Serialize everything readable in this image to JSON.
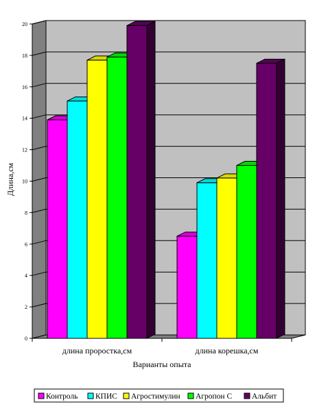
{
  "chart_data": {
    "type": "bar",
    "title": "",
    "xlabel": "Варианты опыта",
    "ylabel": "Длина,см",
    "ylim": [
      0,
      20
    ],
    "yticks": [
      0,
      2,
      4,
      6,
      8,
      10,
      12,
      14,
      16,
      18,
      20
    ],
    "grid": true,
    "three_d": true,
    "legend_position": "bottom",
    "categories": [
      "длина проростка,см",
      "длина корешка,см"
    ],
    "series": [
      {
        "name": "Контроль",
        "values": [
          13.9,
          6.5
        ],
        "color": "#ff00ff"
      },
      {
        "name": "КПИС",
        "values": [
          15.1,
          9.9
        ],
        "color": "#00ffff"
      },
      {
        "name": "Агростимулин",
        "values": [
          17.7,
          10.2
        ],
        "color": "#ffff00"
      },
      {
        "name": "Агропон С",
        "values": [
          17.9,
          11.0
        ],
        "color": "#00ff00"
      },
      {
        "name": "Альбит",
        "values": [
          19.9,
          17.5
        ],
        "color": "#660066"
      }
    ],
    "wall_color": "#c0c0c0",
    "floor_color": "#808080"
  }
}
